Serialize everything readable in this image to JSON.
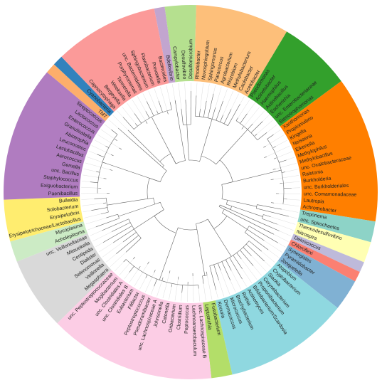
{
  "clades": [
    {
      "color": "#b5e08f",
      "taxa": [
        "Campylobacter",
        "Desulfovibrio",
        "Desulfomicrobium"
      ]
    },
    {
      "color": "#fdbf7a",
      "taxa": [
        "Rhodobacter",
        "Novosphingobium",
        "Sphingomonas",
        "Paracoccus",
        "Agrobacterium",
        "Rhizobium",
        "Methylobacterium",
        "Caulobacter",
        "Acetobacter"
      ]
    },
    {
      "color": "#33a02c",
      "taxa": [
        "Pseudomonas",
        "Acinetobacter",
        "Haemophilus",
        "Actinobacillus",
        "Escherichia",
        "unc. Enterobacteriaceae",
        "Stenotrophomonas"
      ]
    },
    {
      "color": "#ff7f00",
      "taxa": [
        "Xanthomonas",
        "Propionivibrio",
        "Kingella",
        "Neisseria",
        "Eikenella",
        "Methylophilus",
        "Methylobacillus",
        "unc. Oxalobacteraceae",
        "Ralstonia",
        "Burkholderia",
        "unc. Burkholderiales",
        "unc. Comamonadaceae",
        "Lautropia",
        "Achromobacter"
      ]
    },
    {
      "color": "#8dd3c7",
      "taxa": [
        "Treponema",
        "unc. Spirochaetes"
      ]
    },
    {
      "color": "#ffffb3",
      "taxa": [
        "Thermodesulfovibrio",
        "Nitrospira"
      ]
    },
    {
      "color": "#bebada",
      "taxa": [
        "Deinococcus"
      ]
    },
    {
      "color": "#fb8072",
      "taxa": [
        "Chloroflexi"
      ]
    },
    {
      "color": "#80b1d3",
      "taxa": [
        "Synergistes",
        "Pyramidobacter",
        "Jonquetella"
      ]
    },
    {
      "color": "#8fd8e0",
      "taxa": [
        "Atopobium",
        "Cryptobacterium",
        "Slackia",
        "Corynebacterium",
        "Propionibacterium",
        "Bifidobacterium/Scardovia",
        "Actinomyces",
        "Rothia",
        "Brachybacterium",
        "Micrococcus",
        "Dermacoccus",
        "Kocuria"
      ]
    },
    {
      "color": "#b3de69",
      "taxa": [
        "Fusobacterium",
        "Leptotrichia"
      ]
    },
    {
      "color": "#fccde5",
      "taxa": [
        "unc. Lachnospiraceae B",
        "Lachnoanaerobaculum",
        "Peptococcus",
        "Clostridium",
        "Oribacterium",
        "Catonella",
        "Johnsonella",
        "unc. Lachnospiraceae A",
        "Pseudoramibacter",
        "Peptostreptococcus",
        "Filifactor",
        "Eubacterium",
        "unc. Clostridiales B",
        "unc. Clostridiales A",
        "Mogibacterium",
        "unc. Peptostreptococcaceae"
      ]
    },
    {
      "color": "#d9d9d9",
      "taxa": [
        "Megasphaera",
        "Veillonella",
        "Selenomonas",
        "Dialister",
        "Centipeda",
        "Mitsuokella",
        "unc. Veillonellaceae"
      ]
    },
    {
      "color": "#ccebc5",
      "taxa": [
        "Acholeplasma",
        "Mycoplasma"
      ]
    },
    {
      "color": "#ffed6f",
      "taxa": [
        "Erysipelotrichaceae/Lactobacillus",
        "Erysipelothrix",
        "Solobacterium",
        "Bulleidia"
      ]
    },
    {
      "color": "#b07cc0",
      "taxa": [
        "Paenibacillus",
        "Exiguobacterium",
        "Staphylococcus",
        "unc. Bacillus",
        "Gemella",
        "Aerococcus",
        "Lactobacillus",
        "Leuconostoc",
        "Abiotrophia",
        "Granulicatella",
        "Enterococcus",
        "Lactococcus",
        "Streptococcus"
      ]
    },
    {
      "color": "#fdae6b",
      "taxa": [
        "TM7"
      ]
    },
    {
      "color": "#3182bd",
      "taxa": [
        "Cyanobacteria"
      ]
    },
    {
      "color": "#fb9a99",
      "taxa": [
        "Capnocytophaga",
        "Bergeyella",
        "Weeksella",
        "Tannerella",
        "Porphyromonas",
        "unc. Bacteroidetes",
        "Sphingobacterium",
        "Flavobacterium",
        "Prevotella",
        "Bacteroides"
      ]
    },
    {
      "color": "#c2a5cf",
      "taxa": [
        "Bdellovibrio"
      ]
    }
  ]
}
